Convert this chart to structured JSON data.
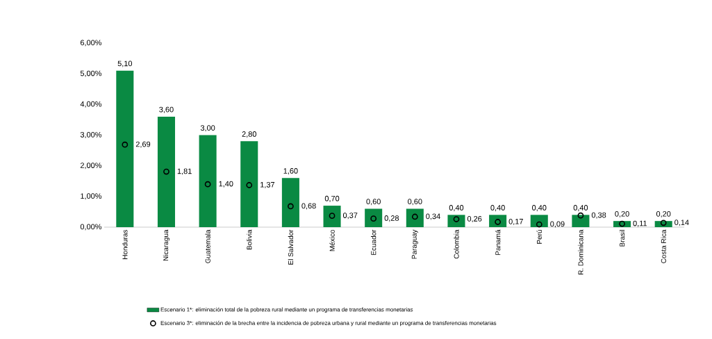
{
  "chart_data": {
    "type": "bar",
    "categories": [
      "Honduras",
      "Nicaragua",
      "Guatemala",
      "Bolivia",
      "El Salvador",
      "México",
      "Ecuador",
      "Paraguay",
      "Colombia",
      "Panamá",
      "Perú",
      "R. Dominicana",
      "Brasil",
      "Costa Rica"
    ],
    "series": [
      {
        "name": "Escenario 1*: eliminación total de la pobreza rural mediante un programa de transferencias monetarias",
        "color": "#0a8a43",
        "values": [
          5.1,
          3.6,
          3.0,
          2.8,
          1.6,
          0.7,
          0.6,
          0.6,
          0.4,
          0.4,
          0.4,
          0.4,
          0.2,
          0.2
        ],
        "value_labels": [
          "5,10",
          "3,60",
          "3,00",
          "2,80",
          "1,60",
          "0,70",
          "0,60",
          "0,60",
          "0,40",
          "0,40",
          "0,40",
          "0,40",
          "0,20",
          "0,20"
        ]
      },
      {
        "type": "scatter",
        "marker": "circle",
        "name": "Escenario 3*: eliminación de la brecha entre la incidencia de pobreza urbana y rural mediante un programa de transferencias monetarias",
        "color": "#000000",
        "values": [
          2.69,
          1.81,
          1.4,
          1.37,
          0.68,
          0.37,
          0.28,
          0.34,
          0.26,
          0.17,
          0.09,
          0.38,
          0.11,
          0.14
        ],
        "value_labels": [
          "2,69",
          "1,81",
          "1,40",
          "1,37",
          "0,68",
          "0,37",
          "0,28",
          "0,34",
          "0,26",
          "0,17",
          "0,09",
          "0,38",
          "0,11",
          "0,14"
        ]
      }
    ],
    "ylim": [
      0,
      6
    ],
    "yticks": [
      {
        "value": 0,
        "label": "0,00%"
      },
      {
        "value": 1,
        "label": "1,00%"
      },
      {
        "value": 2,
        "label": "2,00%"
      },
      {
        "value": 3,
        "label": "3,00%"
      },
      {
        "value": 4,
        "label": "4,00%"
      },
      {
        "value": 5,
        "label": "5,00%"
      },
      {
        "value": 6,
        "label": "6,00%"
      }
    ],
    "legend": "bottom"
  }
}
